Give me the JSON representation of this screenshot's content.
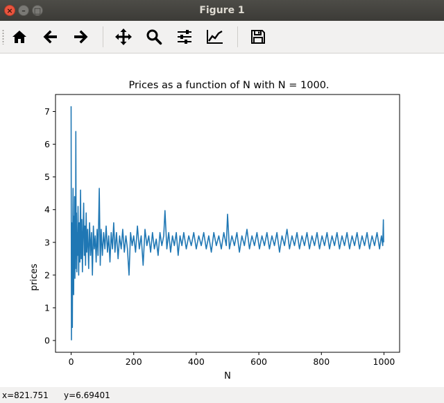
{
  "window": {
    "title": "Figure 1",
    "close_glyph": "×",
    "minimize_glyph": "–",
    "maximize_glyph": "□"
  },
  "toolbar": {
    "buttons": [
      {
        "name": "home",
        "icon": "home-icon"
      },
      {
        "name": "back",
        "icon": "arrow-left-icon"
      },
      {
        "name": "forward",
        "icon": "arrow-right-icon"
      },
      {
        "name": "pan",
        "icon": "move-icon"
      },
      {
        "name": "zoom",
        "icon": "zoom-icon"
      },
      {
        "name": "configure-subplots",
        "icon": "sliders-icon"
      },
      {
        "name": "edit-axis",
        "icon": "line-chart-icon"
      },
      {
        "name": "save",
        "icon": "save-icon"
      }
    ]
  },
  "status": {
    "x": "x=821.751",
    "y": "y=6.69401"
  },
  "colors": {
    "line": "#1f77b4"
  },
  "chart_data": {
    "type": "line",
    "title": "Prices as a function of N with N = 1000.",
    "xlabel": "N",
    "ylabel": "prices",
    "xlim": [
      -50,
      1050
    ],
    "ylim": [
      -0.36,
      7.52
    ],
    "xticks": [
      0,
      200,
      400,
      600,
      800,
      1000
    ],
    "yticks": [
      0,
      1,
      2,
      3,
      4,
      5,
      6,
      7
    ],
    "grid": false,
    "series": [
      {
        "description": "prices per N, noisy series converging near 3",
        "points": [
          [
            0,
            7.16
          ],
          [
            1,
            0.02
          ],
          [
            2,
            3.6
          ],
          [
            3,
            1.2
          ],
          [
            4,
            0.4
          ],
          [
            5,
            3.2
          ],
          [
            6,
            4.65
          ],
          [
            7,
            2.0
          ],
          [
            8,
            1.4
          ],
          [
            9,
            3.8
          ],
          [
            10,
            2.3
          ],
          [
            11,
            4.4
          ],
          [
            12,
            1.9
          ],
          [
            13,
            3.5
          ],
          [
            14,
            2.2
          ],
          [
            15,
            6.39
          ],
          [
            16,
            2.5
          ],
          [
            17,
            3.9
          ],
          [
            18,
            2.1
          ],
          [
            19,
            3.3
          ],
          [
            20,
            2.6
          ],
          [
            22,
            4.1
          ],
          [
            24,
            2.0
          ],
          [
            26,
            3.6
          ],
          [
            28,
            2.4
          ],
          [
            30,
            4.6
          ],
          [
            32,
            2.5
          ],
          [
            34,
            3.7
          ],
          [
            36,
            2.1
          ],
          [
            38,
            3.3
          ],
          [
            40,
            4.2
          ],
          [
            42,
            2.6
          ],
          [
            44,
            3.5
          ],
          [
            46,
            2.3
          ],
          [
            48,
            3.9
          ],
          [
            50,
            2.7
          ],
          [
            53,
            3.4
          ],
          [
            56,
            2.2
          ],
          [
            59,
            3.6
          ],
          [
            62,
            2.6
          ],
          [
            65,
            3.3
          ],
          [
            68,
            2.0
          ],
          [
            71,
            3.5
          ],
          [
            74,
            2.8
          ],
          [
            77,
            3.2
          ],
          [
            80,
            2.4
          ],
          [
            83,
            3.4
          ],
          [
            86,
            2.6
          ],
          [
            90,
            4.65
          ],
          [
            93,
            2.3
          ],
          [
            96,
            3.4
          ],
          [
            100,
            2.6
          ],
          [
            104,
            3.3
          ],
          [
            108,
            2.8
          ],
          [
            112,
            3.5
          ],
          [
            116,
            2.7
          ],
          [
            120,
            3.2
          ],
          [
            124,
            2.4
          ],
          [
            128,
            3.3
          ],
          [
            132,
            2.8
          ],
          [
            136,
            3.6
          ],
          [
            140,
            2.7
          ],
          [
            145,
            3.3
          ],
          [
            150,
            2.5
          ],
          [
            155,
            3.2
          ],
          [
            160,
            2.8
          ],
          [
            165,
            3.4
          ],
          [
            170,
            2.7
          ],
          [
            175,
            3.2
          ],
          [
            180,
            2.8
          ],
          [
            185,
            2.0
          ],
          [
            190,
            3.3
          ],
          [
            195,
            2.9
          ],
          [
            200,
            3.2
          ],
          [
            206,
            2.7
          ],
          [
            212,
            3.5
          ],
          [
            218,
            2.8
          ],
          [
            224,
            3.2
          ],
          [
            230,
            2.3
          ],
          [
            236,
            3.4
          ],
          [
            242,
            2.9
          ],
          [
            248,
            3.2
          ],
          [
            254,
            2.7
          ],
          [
            260,
            3.3
          ],
          [
            266,
            2.8
          ],
          [
            272,
            3.1
          ],
          [
            278,
            2.6
          ],
          [
            284,
            3.3
          ],
          [
            290,
            2.9
          ],
          [
            296,
            3.2
          ],
          [
            300,
            3.97
          ],
          [
            306,
            2.8
          ],
          [
            312,
            3.3
          ],
          [
            318,
            2.7
          ],
          [
            324,
            3.2
          ],
          [
            330,
            2.9
          ],
          [
            336,
            3.3
          ],
          [
            342,
            2.6
          ],
          [
            348,
            3.2
          ],
          [
            354,
            2.9
          ],
          [
            360,
            3.3
          ],
          [
            368,
            2.8
          ],
          [
            376,
            3.2
          ],
          [
            384,
            2.9
          ],
          [
            392,
            3.3
          ],
          [
            400,
            2.8
          ],
          [
            408,
            3.2
          ],
          [
            416,
            2.9
          ],
          [
            424,
            3.3
          ],
          [
            432,
            2.8
          ],
          [
            440,
            3.2
          ],
          [
            448,
            2.7
          ],
          [
            456,
            3.3
          ],
          [
            464,
            2.9
          ],
          [
            472,
            3.2
          ],
          [
            480,
            2.8
          ],
          [
            488,
            3.3
          ],
          [
            496,
            2.9
          ],
          [
            500,
            3.86
          ],
          [
            506,
            2.8
          ],
          [
            514,
            3.2
          ],
          [
            522,
            2.9
          ],
          [
            530,
            3.3
          ],
          [
            538,
            2.7
          ],
          [
            546,
            3.2
          ],
          [
            554,
            2.9
          ],
          [
            562,
            3.4
          ],
          [
            570,
            2.8
          ],
          [
            578,
            3.2
          ],
          [
            586,
            2.9
          ],
          [
            594,
            3.3
          ],
          [
            602,
            2.8
          ],
          [
            610,
            3.2
          ],
          [
            618,
            2.9
          ],
          [
            626,
            3.3
          ],
          [
            634,
            2.8
          ],
          [
            642,
            3.2
          ],
          [
            650,
            2.9
          ],
          [
            658,
            3.3
          ],
          [
            666,
            2.7
          ],
          [
            674,
            3.2
          ],
          [
            682,
            2.9
          ],
          [
            690,
            3.4
          ],
          [
            698,
            2.8
          ],
          [
            706,
            3.2
          ],
          [
            714,
            2.9
          ],
          [
            722,
            3.3
          ],
          [
            730,
            2.8
          ],
          [
            738,
            3.2
          ],
          [
            746,
            2.9
          ],
          [
            754,
            3.3
          ],
          [
            762,
            2.8
          ],
          [
            770,
            3.2
          ],
          [
            778,
            2.9
          ],
          [
            786,
            3.3
          ],
          [
            794,
            2.8
          ],
          [
            802,
            3.2
          ],
          [
            810,
            2.9
          ],
          [
            818,
            3.3
          ],
          [
            826,
            2.8
          ],
          [
            834,
            3.2
          ],
          [
            842,
            2.9
          ],
          [
            850,
            3.3
          ],
          [
            858,
            2.8
          ],
          [
            866,
            3.2
          ],
          [
            874,
            2.9
          ],
          [
            882,
            3.3
          ],
          [
            890,
            2.8
          ],
          [
            898,
            3.2
          ],
          [
            906,
            2.9
          ],
          [
            914,
            3.3
          ],
          [
            922,
            2.8
          ],
          [
            930,
            3.2
          ],
          [
            938,
            2.9
          ],
          [
            946,
            3.3
          ],
          [
            954,
            2.8
          ],
          [
            962,
            3.2
          ],
          [
            970,
            2.9
          ],
          [
            978,
            3.3
          ],
          [
            986,
            2.8
          ],
          [
            992,
            3.2
          ],
          [
            996,
            2.9
          ],
          [
            998,
            3.69
          ],
          [
            999,
            3.0
          ]
        ]
      }
    ]
  }
}
